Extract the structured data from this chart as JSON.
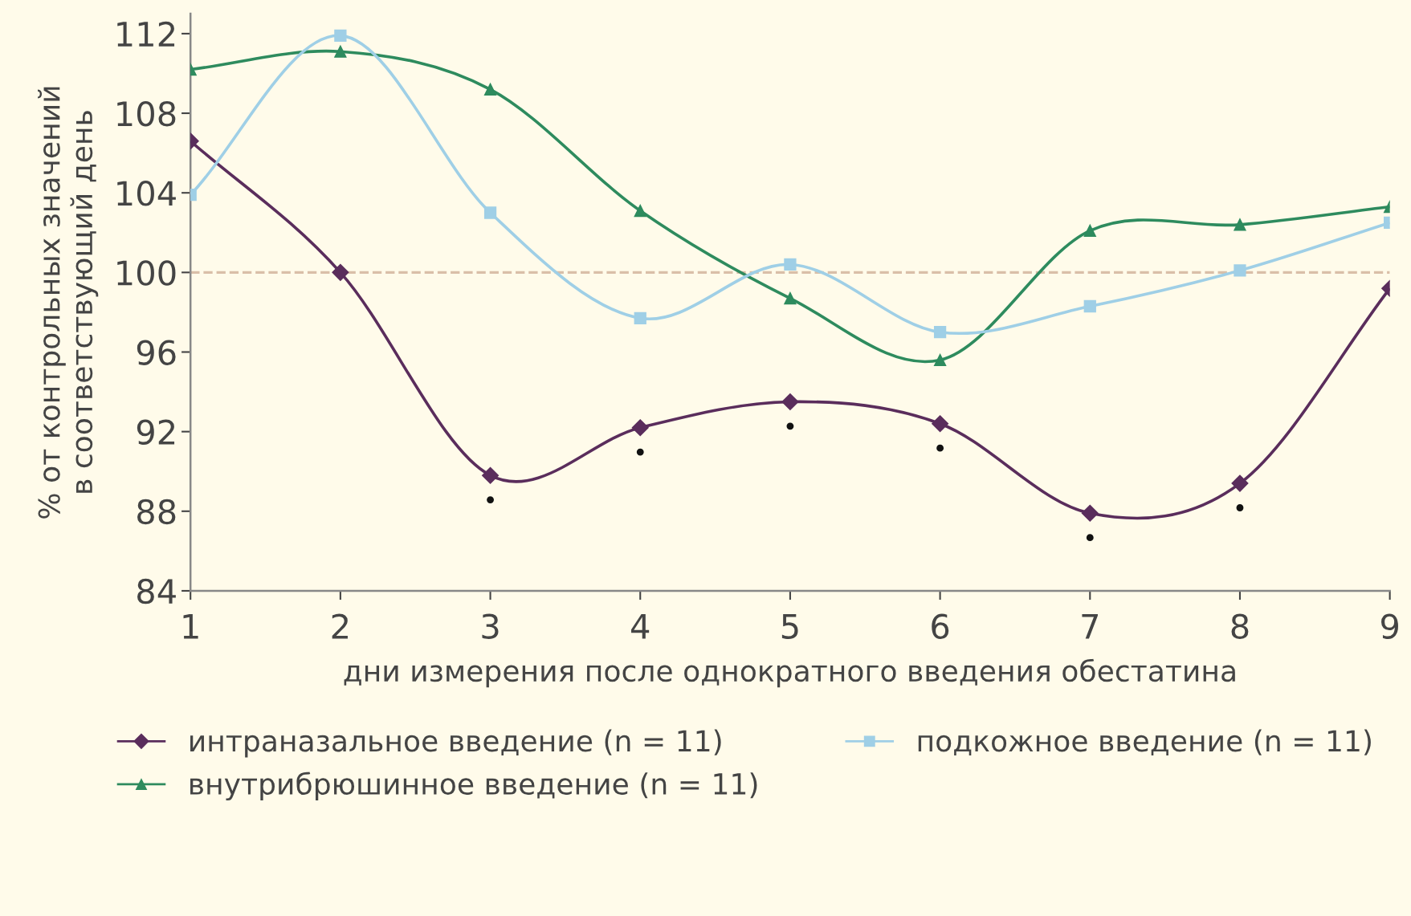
{
  "chart_data": {
    "type": "line",
    "xlabel": "дни измерения после однократного введения обестатина",
    "ylabel": "% от контрольных значений\nв соответствующий день",
    "x": [
      1,
      2,
      3,
      4,
      5,
      6,
      7,
      8,
      9
    ],
    "series": [
      {
        "name": "интраназальное введение (n = 11)",
        "color": "#5a2d5c",
        "marker": "diamond",
        "values": [
          106.6,
          100.0,
          89.8,
          92.2,
          93.5,
          92.4,
          87.9,
          89.4,
          99.2
        ]
      },
      {
        "name": "внутрибрюшинное введение (n = 11)",
        "color": "#2e8b5e",
        "marker": "triangle",
        "values": [
          110.2,
          111.1,
          109.2,
          103.1,
          98.7,
          95.6,
          102.1,
          102.4,
          103.3
        ]
      },
      {
        "name": "подкожное введение (n = 11)",
        "color": "#9fcfe6",
        "marker": "square",
        "values": [
          103.9,
          111.9,
          103.0,
          97.7,
          100.4,
          97.0,
          98.3,
          100.1,
          102.5
        ]
      }
    ],
    "annotations": [
      {
        "text": "•",
        "x": 3,
        "y": 89.8
      },
      {
        "text": "•",
        "x": 4,
        "y": 92.2
      },
      {
        "text": "•",
        "x": 5,
        "y": 93.5
      },
      {
        "text": "•",
        "x": 6,
        "y": 92.4
      },
      {
        "text": "•",
        "x": 7,
        "y": 87.9
      },
      {
        "text": "•",
        "x": 8,
        "y": 89.4
      }
    ],
    "ref_lines": [
      {
        "axis": "y",
        "value": 100,
        "color": "#d9bfa8",
        "line_style": "dashed"
      }
    ],
    "xlim": [
      1,
      9
    ],
    "xticks": [
      1,
      2,
      3,
      4,
      5,
      6,
      7,
      8,
      9
    ],
    "ylim": [
      84,
      113
    ],
    "yticks": [
      84,
      88,
      92,
      96,
      100,
      104,
      108,
      112
    ],
    "grid": false,
    "legend": "bottom",
    "line_style": "solid"
  }
}
